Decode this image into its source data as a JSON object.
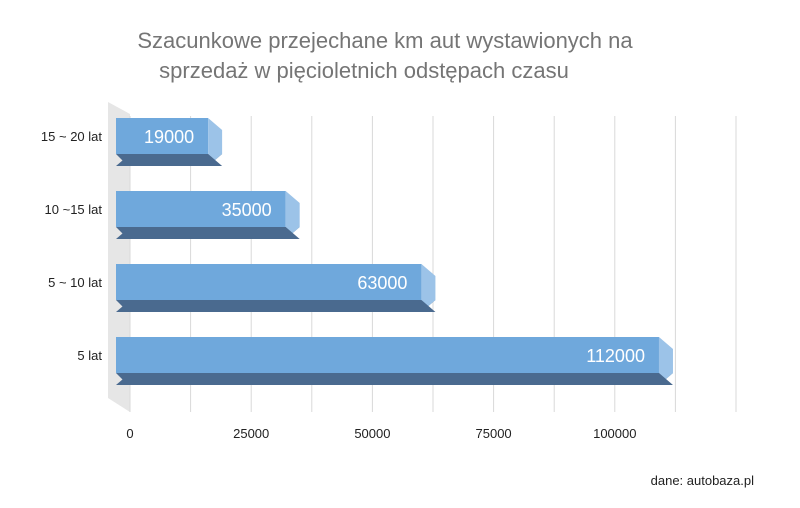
{
  "title_line1": "Szacunkowe przejechane km aut wystawionych na",
  "title_line2": "sprzedaż w pięcioletnich odstępach czasu",
  "source_note": "dane: autobaza.pl",
  "chart_data": {
    "type": "bar",
    "orientation": "horizontal",
    "style": "3d",
    "categories": [
      "15 ~ 20 lat",
      "10 ~15 lat",
      "5 ~ 10 lat",
      "5 lat"
    ],
    "values": [
      19000,
      35000,
      63000,
      112000
    ],
    "data_labels": [
      "19000",
      "35000",
      "63000",
      "112000"
    ],
    "x_ticks": [
      0,
      25000,
      50000,
      75000,
      100000
    ],
    "xlim": [
      0,
      125000
    ],
    "grid": true,
    "legend": "none",
    "colors": {
      "bar_face": "#6fa8dc",
      "bar_top": "#4a6a8f",
      "bar_side": "#9cc3e8",
      "data_label": "#ffffff",
      "grid": "#d9d9d9",
      "wall": "#e6e6e6",
      "tick_text": "#222222"
    }
  }
}
